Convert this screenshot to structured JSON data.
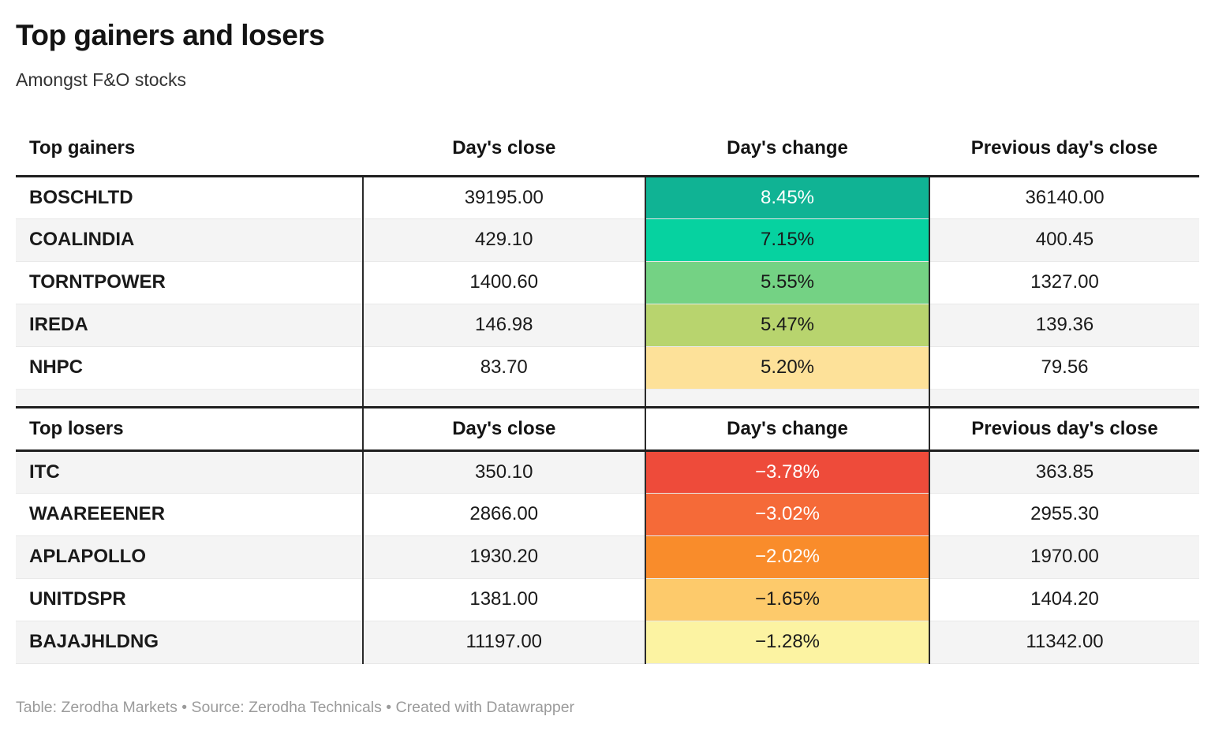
{
  "header": {
    "title": "Top gainers and losers",
    "subtitle": "Amongst F&O stocks"
  },
  "columns": {
    "close": "Day's close",
    "change": "Day's change",
    "prev": "Previous day's close"
  },
  "gainers": {
    "label": "Top gainers",
    "rows": [
      {
        "symbol": "BOSCHLTD",
        "close": "39195.00",
        "change": "8.45%",
        "prev": "36140.00",
        "change_bg": "#10b394",
        "change_fg": "#ffffff"
      },
      {
        "symbol": "COALINDIA",
        "close": "429.10",
        "change": "7.15%",
        "prev": "400.45",
        "change_bg": "#06d2a0",
        "change_fg": "#1a1a1a"
      },
      {
        "symbol": "TORNTPOWER",
        "close": "1400.60",
        "change": "5.55%",
        "prev": "1327.00",
        "change_bg": "#74d284",
        "change_fg": "#1a1a1a"
      },
      {
        "symbol": "IREDA",
        "close": "146.98",
        "change": "5.47%",
        "prev": "139.36",
        "change_bg": "#b8d46e",
        "change_fg": "#1a1a1a"
      },
      {
        "symbol": "NHPC",
        "close": "83.70",
        "change": "5.20%",
        "prev": "79.56",
        "change_bg": "#fde199",
        "change_fg": "#1a1a1a"
      }
    ]
  },
  "losers": {
    "label": "Top losers",
    "rows": [
      {
        "symbol": "ITC",
        "close": "350.10",
        "change": "−3.78%",
        "prev": "363.85",
        "change_bg": "#ee4b3a",
        "change_fg": "#ffffff"
      },
      {
        "symbol": "WAAREEENER",
        "close": "2866.00",
        "change": "−3.02%",
        "prev": "2955.30",
        "change_bg": "#f56a38",
        "change_fg": "#ffffff"
      },
      {
        "symbol": "APLAPOLLO",
        "close": "1930.20",
        "change": "−2.02%",
        "prev": "1970.00",
        "change_bg": "#f98c2b",
        "change_fg": "#ffffff"
      },
      {
        "symbol": "UNITDSPR",
        "close": "1381.00",
        "change": "−1.65%",
        "prev": "1404.20",
        "change_bg": "#fdca6b",
        "change_fg": "#1a1a1a"
      },
      {
        "symbol": "BAJAJHLDNG",
        "close": "11197.00",
        "change": "−1.28%",
        "prev": "11342.00",
        "change_bg": "#fcf3a2",
        "change_fg": "#1a1a1a"
      }
    ]
  },
  "footer": {
    "text": "Table: Zerodha Markets • Source: Zerodha Technicals • Created with Datawrapper"
  },
  "chart_data": [
    {
      "type": "table",
      "title": "Top gainers",
      "columns": [
        "Top gainers",
        "Day's close",
        "Day's change",
        "Previous day's close"
      ],
      "rows": [
        [
          "BOSCHLTD",
          39195.0,
          "8.45%",
          36140.0
        ],
        [
          "COALINDIA",
          429.1,
          "7.15%",
          400.45
        ],
        [
          "TORNTPOWER",
          1400.6,
          "5.55%",
          1327.0
        ],
        [
          "IREDA",
          146.98,
          "5.47%",
          139.36
        ],
        [
          "NHPC",
          83.7,
          "5.20%",
          79.56
        ]
      ],
      "heatmap_column": "Day's change",
      "heatmap_colors": [
        "#10b394",
        "#06d2a0",
        "#74d284",
        "#b8d46e",
        "#fde199"
      ]
    },
    {
      "type": "table",
      "title": "Top losers",
      "columns": [
        "Top losers",
        "Day's close",
        "Day's change",
        "Previous day's close"
      ],
      "rows": [
        [
          "ITC",
          350.1,
          "-3.78%",
          363.85
        ],
        [
          "WAAREEENER",
          2866.0,
          "-3.02%",
          2955.3
        ],
        [
          "APLAPOLLO",
          1930.2,
          "-2.02%",
          1970.0
        ],
        [
          "UNITDSPR",
          1381.0,
          "-1.65%",
          1404.2
        ],
        [
          "BAJAJHLDNG",
          11197.0,
          "-1.28%",
          11342.0
        ]
      ],
      "heatmap_column": "Day's change",
      "heatmap_colors": [
        "#ee4b3a",
        "#f56a38",
        "#f98c2b",
        "#fdca6b",
        "#fcf3a2"
      ]
    }
  ]
}
